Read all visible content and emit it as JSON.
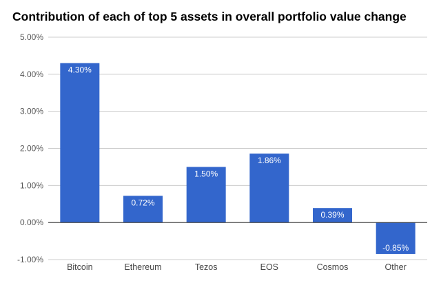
{
  "chart_data": {
    "type": "bar",
    "title": "Contribution of each of top 5 assets in overall portfolio value change",
    "categories": [
      "Bitcoin",
      "Ethereum",
      "Tezos",
      "EOS",
      "Cosmos",
      "Other"
    ],
    "values": [
      4.3,
      0.72,
      1.5,
      1.86,
      0.39,
      -0.85
    ],
    "data_labels": [
      "4.30%",
      "0.72%",
      "1.50%",
      "1.86%",
      "0.39%",
      "-0.85%"
    ],
    "yticks": [
      -1,
      0,
      1,
      2,
      3,
      4,
      5
    ],
    "ytick_labels": [
      "-1.00%",
      "0.00%",
      "1.00%",
      "2.00%",
      "3.00%",
      "4.00%",
      "5.00%"
    ],
    "ylim": [
      -1,
      5
    ],
    "xlabel": "",
    "ylabel": "",
    "grid": true,
    "legend": "none",
    "colors": {
      "bar": "#3366cc",
      "grid": "#cccccc",
      "axis": "#333333"
    }
  }
}
